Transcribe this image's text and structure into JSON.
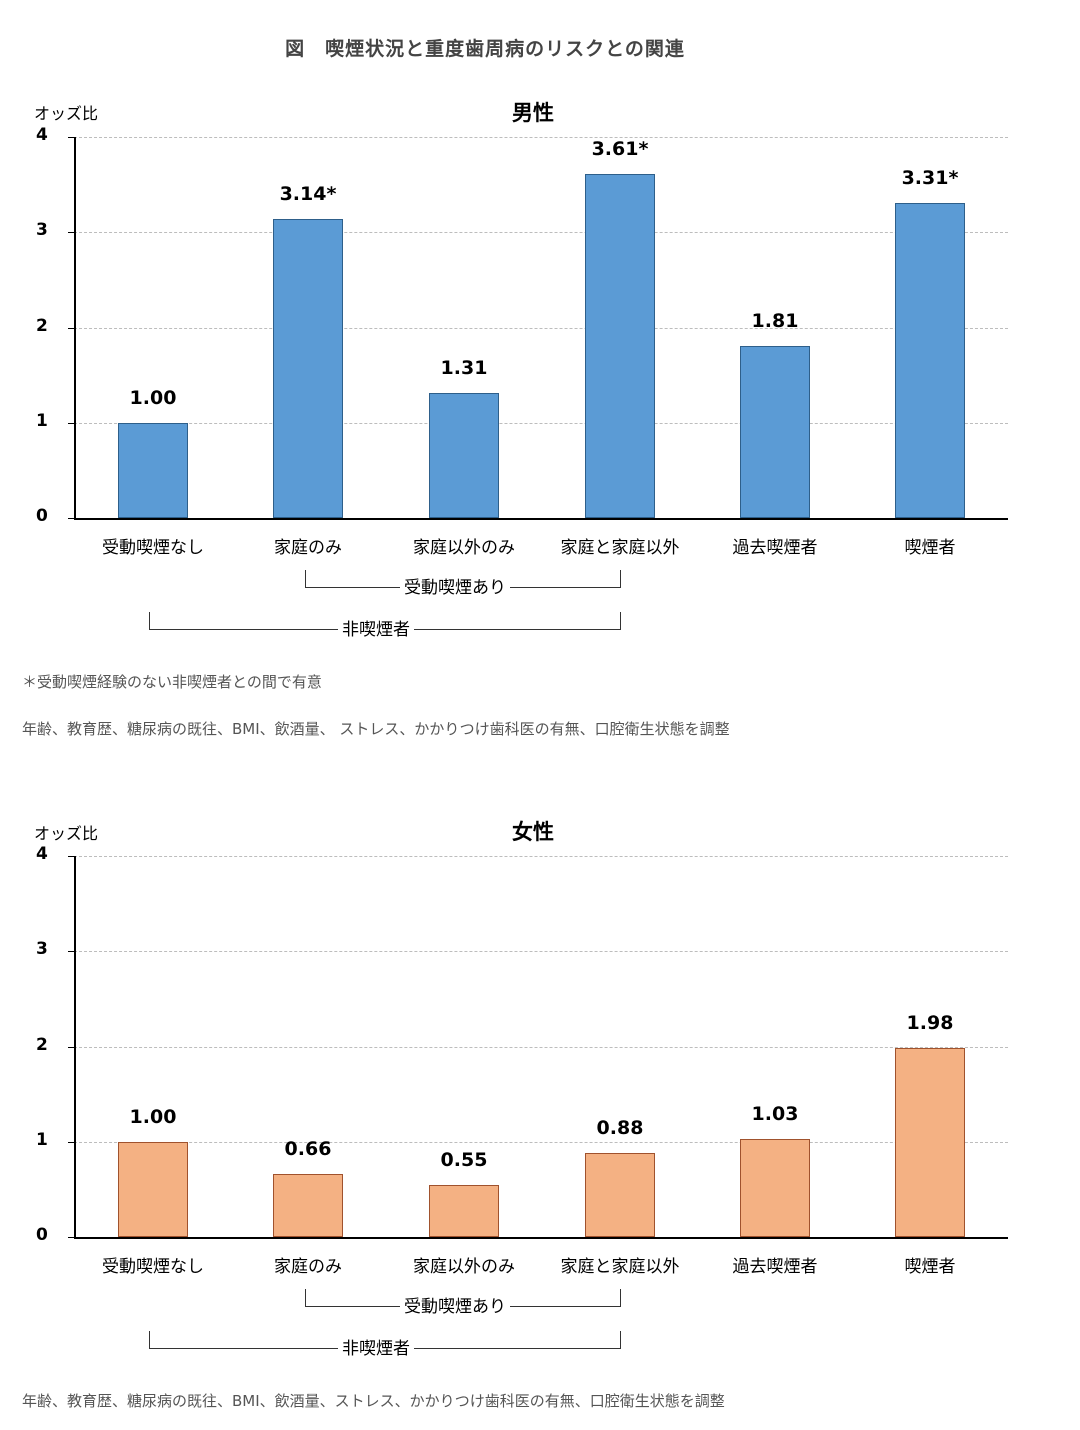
{
  "figure_title": "図　喫煙状況と重度歯周病のリスクとの関連",
  "chart_data": [
    {
      "type": "bar",
      "title": "男性",
      "ylabel": "オッズ比",
      "xlabel": "",
      "ylim": [
        0,
        4
      ],
      "yticks": [
        "0",
        "1",
        "2",
        "3",
        "4"
      ],
      "grid": true,
      "color": "#5b9bd5",
      "categories": [
        "受動喫煙なし",
        "家庭のみ",
        "家庭以外のみ",
        "家庭と家庭以外",
        "過去喫煙者",
        "喫煙者"
      ],
      "values": [
        1.0,
        3.14,
        1.31,
        3.61,
        1.81,
        3.31
      ],
      "data_labels": [
        "1.00",
        "3.14*",
        "1.31",
        "3.61*",
        "1.81",
        "3.31*"
      ],
      "groups": [
        {
          "label": "受動喫煙あり",
          "from": "家庭のみ",
          "to": "家庭と家庭以外"
        },
        {
          "label": "非喫煙者",
          "from": "受動喫煙なし",
          "to": "家庭と家庭以外"
        }
      ],
      "notes": [
        "＊受動喫煙経験のない非喫煙者との間で有意",
        "年齢、教育歴、糖尿病の既往、BMI、飲酒量、 ストレス、かかりつけ歯科医の有無、口腔衛生状態を調整"
      ]
    },
    {
      "type": "bar",
      "title": "女性",
      "ylabel": "オッズ比",
      "xlabel": "",
      "ylim": [
        0,
        4
      ],
      "yticks": [
        "0",
        "1",
        "2",
        "3",
        "4"
      ],
      "grid": true,
      "color": "#f4b183",
      "categories": [
        "受動喫煙なし",
        "家庭のみ",
        "家庭以外のみ",
        "家庭と家庭以外",
        "過去喫煙者",
        "喫煙者"
      ],
      "values": [
        1.0,
        0.66,
        0.55,
        0.88,
        1.03,
        1.98
      ],
      "data_labels": [
        "1.00",
        "0.66",
        "0.55",
        "0.88",
        "1.03",
        "1.98"
      ],
      "groups": [
        {
          "label": "受動喫煙あり",
          "from": "家庭のみ",
          "to": "家庭と家庭以外"
        },
        {
          "label": "非喫煙者",
          "from": "受動喫煙なし",
          "to": "家庭と家庭以外"
        }
      ],
      "notes": [
        "年齢、教育歴、糖尿病の既往、BMI、飲酒量、ストレス、かかりつけ歯科医の有無、口腔衛生状態を調整"
      ]
    }
  ]
}
